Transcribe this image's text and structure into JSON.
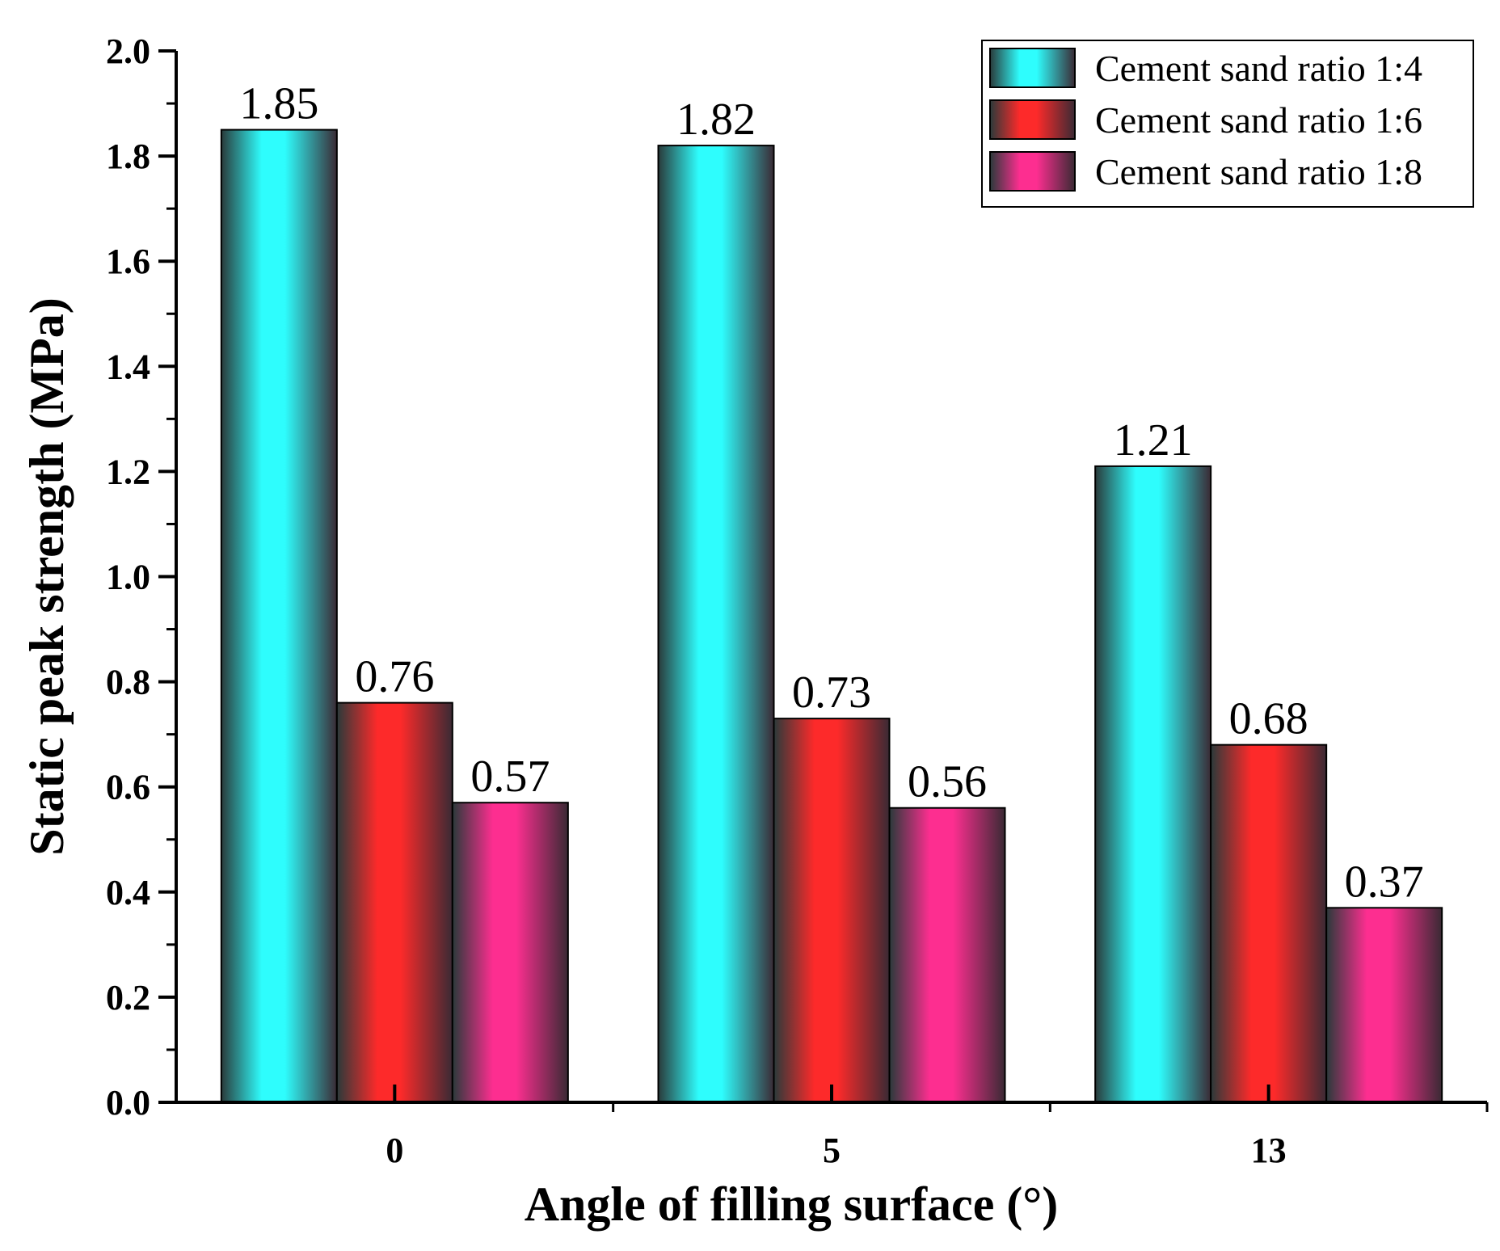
{
  "chart_data": {
    "type": "bar",
    "title": "",
    "xlabel": "Angle of filling surface (°)",
    "ylabel": "Static peak strength (MPa)",
    "categories": [
      "0",
      "5",
      "13"
    ],
    "ylim": [
      0.0,
      2.0
    ],
    "yticks": [
      "0.0",
      "0.2",
      "0.4",
      "0.6",
      "0.8",
      "1.0",
      "1.2",
      "1.4",
      "1.6",
      "1.8",
      "2.0"
    ],
    "series": [
      {
        "name": "Cement sand ratio 1:4",
        "values": [
          1.85,
          1.82,
          1.21
        ],
        "labels": [
          "1.85",
          "1.82",
          "1.21"
        ],
        "color": "#2efdfd"
      },
      {
        "name": "Cement sand ratio 1:6",
        "values": [
          0.76,
          0.73,
          0.68
        ],
        "labels": [
          "0.76",
          "0.73",
          "0.68"
        ],
        "color": "#fd2a2a"
      },
      {
        "name": "Cement sand ratio 1:8",
        "values": [
          0.57,
          0.56,
          0.37
        ],
        "labels": [
          "0.57",
          "0.56",
          "0.37"
        ],
        "color": "#fd2e90"
      }
    ],
    "legend_position": "top-right",
    "grid": false
  }
}
